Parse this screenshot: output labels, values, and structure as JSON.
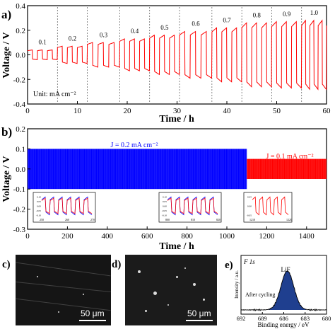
{
  "chart_data": [
    {
      "type": "line",
      "panel_label": "a)",
      "xlabel": "Time / h",
      "ylabel": "Voltage / V",
      "xlim": [
        0,
        60
      ],
      "ylim": [
        -0.4,
        0.4
      ],
      "x_ticks": [
        0,
        10,
        20,
        30,
        40,
        50,
        60
      ],
      "y_ticks": [
        -0.4,
        -0.2,
        0.0,
        0.2,
        0.4
      ],
      "y_tick_labels": [
        "-0.4",
        "-0.2",
        "0.0",
        "0.2",
        "0.4"
      ],
      "unit_note": "Unit: mA cm⁻²",
      "line_color": "#ff0000",
      "current_densities": [
        {
          "label": "0.1",
          "x_start": 0.0,
          "x_end": 6.0,
          "amplitude": 0.04
        },
        {
          "label": "0.2",
          "x_start": 6.0,
          "x_end": 12.0,
          "amplitude": 0.07
        },
        {
          "label": "0.3",
          "x_start": 12.0,
          "x_end": 18.5,
          "amplitude": 0.1
        },
        {
          "label": "0.4",
          "x_start": 18.5,
          "x_end": 24.5,
          "amplitude": 0.13
        },
        {
          "label": "0.5",
          "x_start": 24.5,
          "x_end": 30.5,
          "amplitude": 0.16
        },
        {
          "label": "0.6",
          "x_start": 30.5,
          "x_end": 37.0,
          "amplitude": 0.19
        },
        {
          "label": "0.7",
          "x_start": 37.0,
          "x_end": 43.0,
          "amplitude": 0.22
        },
        {
          "label": "0.8",
          "x_start": 43.0,
          "x_end": 49.0,
          "amplitude": 0.26
        },
        {
          "label": "0.9",
          "x_start": 49.0,
          "x_end": 55.0,
          "amplitude": 0.27
        },
        {
          "label": "1.0",
          "x_start": 55.0,
          "x_end": 60.0,
          "amplitude": 0.28
        }
      ],
      "cycles_per_step": 3
    },
    {
      "type": "line",
      "panel_label": "b)",
      "xlabel": "Time / h",
      "ylabel": "Voltage / V",
      "xlim": [
        0,
        1500
      ],
      "ylim": [
        -0.3,
        0.2
      ],
      "x_ticks": [
        0,
        200,
        400,
        600,
        800,
        1000,
        1200,
        1400
      ],
      "y_ticks": [
        -0.3,
        -0.2,
        -0.1,
        0.0,
        0.1,
        0.2
      ],
      "y_tick_labels": [
        "-0.3",
        "-0.2",
        "-0.1",
        "0.0",
        "0.1",
        "0.2"
      ],
      "series": [
        {
          "name": "J = 0.2 mA cm⁻²",
          "color": "#0000ff",
          "x_range": [
            0,
            1100
          ],
          "upper": 0.1,
          "lower": -0.1
        },
        {
          "name": "J = 0.1 mA cm⁻²",
          "color": "#ff0000",
          "x_range": [
            1100,
            1500
          ],
          "upper": 0.05,
          "lower": -0.05
        }
      ],
      "insets": [
        {
          "x_ticks": [
            "250",
            "260",
            "270"
          ],
          "y_ticks": [
            "0.10",
            "0.05",
            "0.00",
            "-0.05",
            "-0.10"
          ],
          "colors": [
            "#0000ff",
            "#ff0000"
          ]
        },
        {
          "x_ticks": [
            "800",
            "810",
            "820"
          ],
          "y_ticks": [
            "0.10",
            "0.05",
            "0.00",
            "-0.05",
            "-0.10"
          ],
          "colors": [
            "#0000ff",
            "#ff0000"
          ]
        },
        {
          "x_ticks": [
            "1210",
            "1220"
          ],
          "y_ticks": [
            "0.05",
            "0.00",
            "-0.05"
          ],
          "colors": [
            "#ff0000"
          ]
        }
      ]
    },
    {
      "type": "line",
      "panel_label": "e)",
      "xlabel": "Binding energy / eV",
      "ylabel": "Intensity / a.u.",
      "xlim": [
        692,
        680
      ],
      "x_reversed": true,
      "x_ticks": [
        692,
        689,
        686,
        683,
        680
      ],
      "title": "F 1s",
      "annotation": "After cycling",
      "peak_label": "LiF",
      "peak_center": 685.5,
      "peak_fill_color": "#1f3f8f"
    }
  ],
  "sem": [
    {
      "panel_label": "c)",
      "scale_text": "50 μm"
    },
    {
      "panel_label": "d)",
      "scale_text": "50 μm"
    }
  ]
}
